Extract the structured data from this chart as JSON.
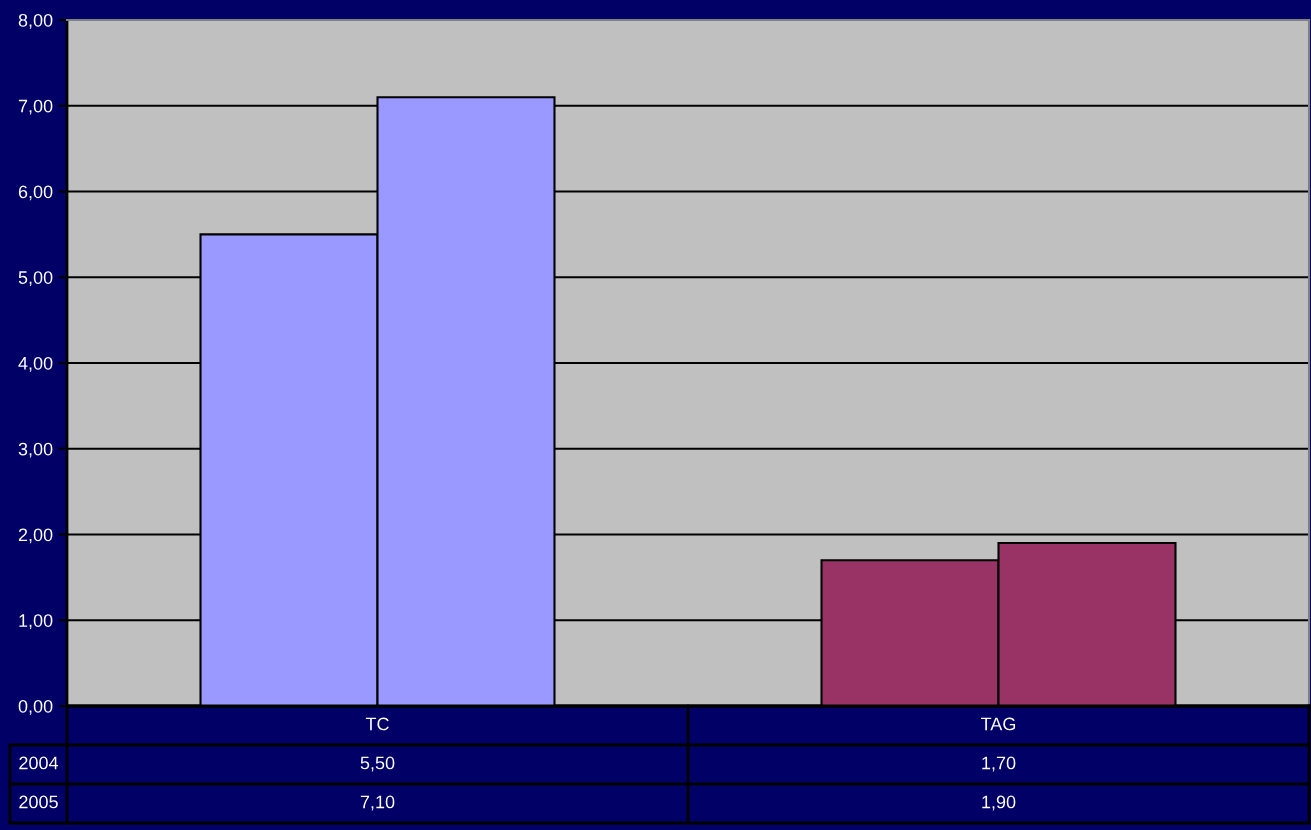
{
  "chart_data": {
    "type": "bar",
    "categories": [
      "TC",
      "TAG"
    ],
    "series": [
      {
        "colors": [
          "#9999ff",
          "#993366"
        ],
        "values": [
          5.5,
          1.7
        ],
        "value_labels": [
          "5,50",
          "1,70"
        ]
      },
      {
        "colors": [
          "#9999ff",
          "#993366"
        ],
        "values": [
          7.1,
          1.9
        ],
        "value_labels": [
          "7,10",
          "1,90"
        ]
      }
    ],
    "annotations": [
      "2004",
      "2005"
    ],
    "ylim": [
      0,
      8
    ],
    "yticks": [
      {
        "value": 0,
        "label": "0,00"
      },
      {
        "value": 1,
        "label": "1,00"
      },
      {
        "value": 2,
        "label": "2,00"
      },
      {
        "value": 3,
        "label": "3,00"
      },
      {
        "value": 4,
        "label": "4,00"
      },
      {
        "value": 5,
        "label": "5,00"
      },
      {
        "value": 6,
        "label": "6,00"
      },
      {
        "value": 7,
        "label": "7,00"
      },
      {
        "value": 8,
        "label": "8,00"
      }
    ],
    "grid": "y"
  }
}
